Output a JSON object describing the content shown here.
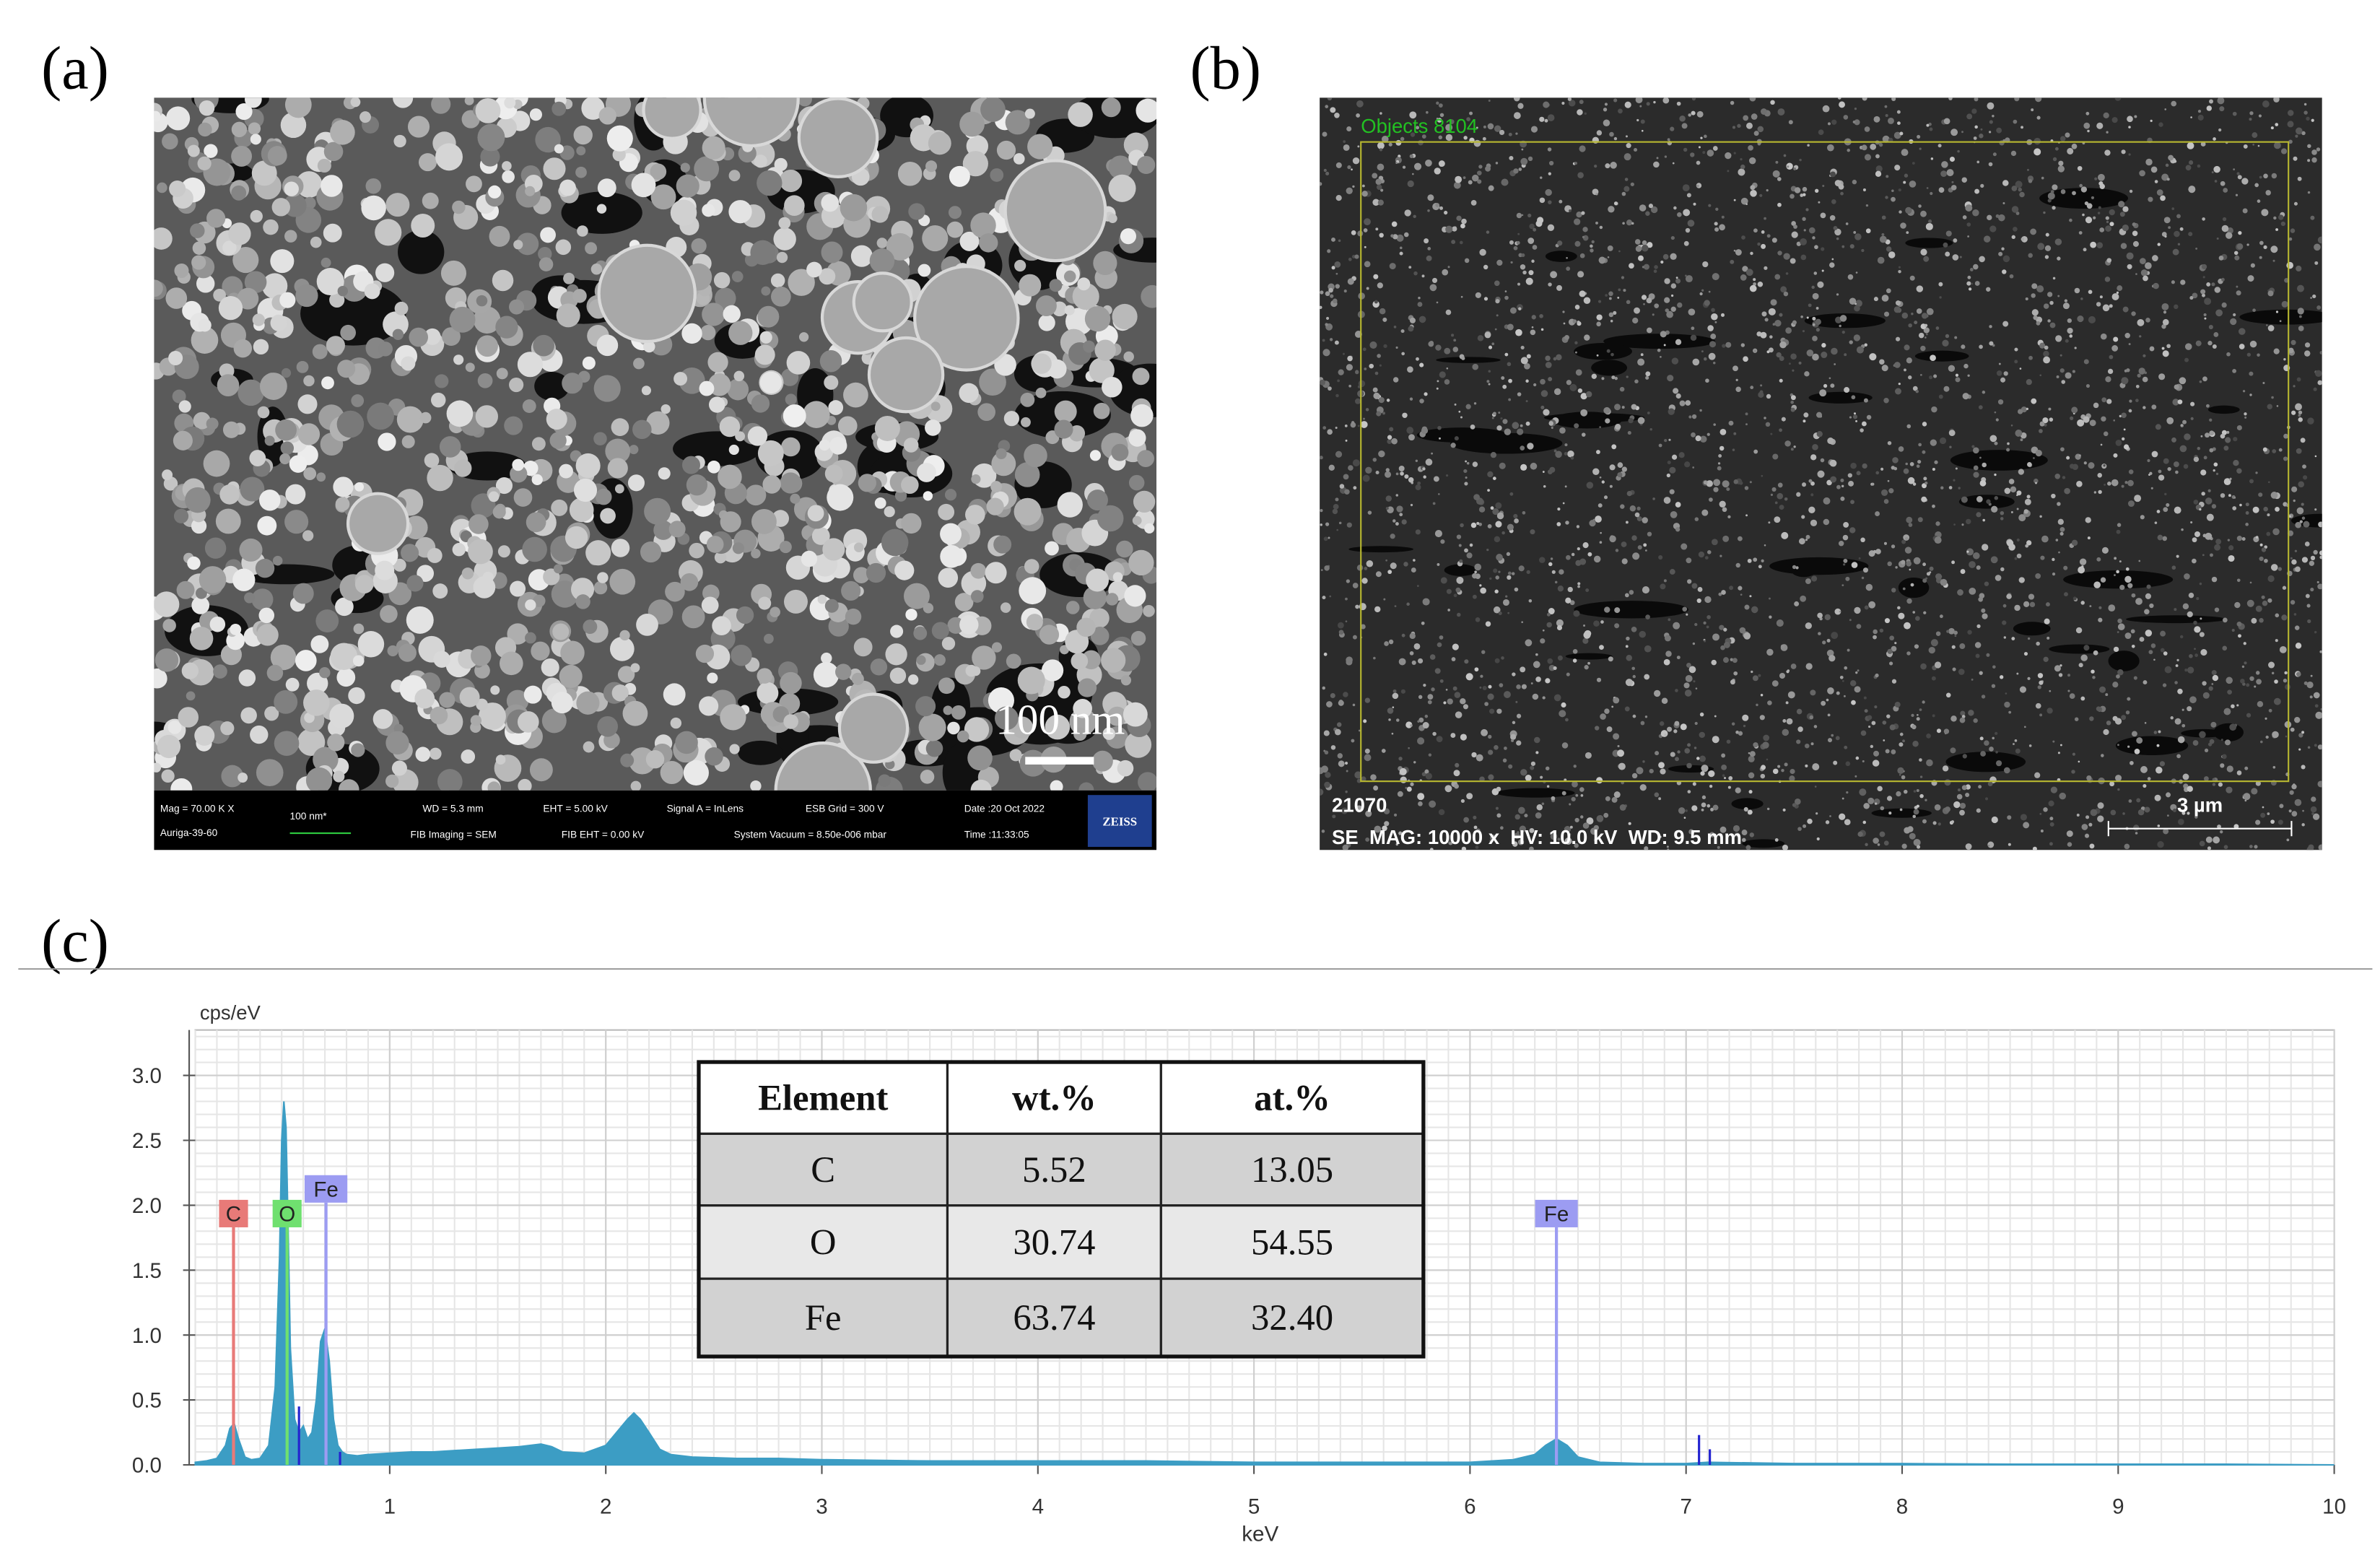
{
  "panel_labels": [
    "(a)",
    "(b)",
    "(c)"
  ],
  "sem_a": {
    "scale_bar": "100 nm",
    "info": [
      "Mag = 70.00 K X",
      "Auriga-39-60",
      "100 nm*",
      "WD = 5.3 mm",
      "EHT = 5.00 kV",
      "Signal A = InLens",
      "ESB Grid = 300 V",
      "Date :20 Oct 2022",
      "FIB Imaging = SEM",
      "FIB EHT = 0.00 kV",
      "System Vacuum = 8.50e-006 mbar",
      "Time :11:33:05"
    ],
    "logo": "ZEISS"
  },
  "sem_b": {
    "objects": "Objects 8104",
    "id": "21070",
    "scale_bar": "3 µm",
    "info": "SE  MAG: 10000 x  HV: 10.0 kV  WD: 9.5 mm"
  },
  "chart_data": {
    "type": "area",
    "ylabel": "cps/eV",
    "xlabel": "keV",
    "color": "#3c9dc4",
    "x": [
      0.1,
      0.15,
      0.2,
      0.24,
      0.26,
      0.28,
      0.3,
      0.33,
      0.36,
      0.4,
      0.44,
      0.47,
      0.49,
      0.5,
      0.51,
      0.52,
      0.53,
      0.54,
      0.56,
      0.58,
      0.6,
      0.62,
      0.64,
      0.66,
      0.68,
      0.7,
      0.72,
      0.74,
      0.76,
      0.78,
      0.8,
      0.85,
      0.9,
      1.0,
      1.1,
      1.2,
      1.3,
      1.4,
      1.5,
      1.6,
      1.7,
      1.75,
      1.8,
      1.9,
      2.0,
      2.05,
      2.1,
      2.13,
      2.16,
      2.2,
      2.25,
      2.3,
      2.4,
      2.6,
      2.8,
      3.0,
      3.5,
      4.0,
      4.5,
      5.0,
      5.5,
      6.0,
      6.2,
      6.3,
      6.35,
      6.4,
      6.45,
      6.5,
      6.6,
      6.8,
      7.0,
      7.1,
      7.5,
      8.0,
      8.5,
      9.0,
      9.5,
      10.0
    ],
    "values": [
      0.02,
      0.03,
      0.05,
      0.15,
      0.28,
      0.32,
      0.2,
      0.06,
      0.04,
      0.05,
      0.15,
      0.6,
      1.6,
      2.5,
      2.8,
      2.6,
      1.8,
      0.9,
      0.35,
      0.25,
      0.3,
      0.2,
      0.25,
      0.5,
      0.95,
      1.05,
      0.8,
      0.35,
      0.15,
      0.1,
      0.08,
      0.07,
      0.08,
      0.09,
      0.1,
      0.1,
      0.11,
      0.12,
      0.13,
      0.14,
      0.16,
      0.14,
      0.1,
      0.09,
      0.15,
      0.25,
      0.35,
      0.4,
      0.35,
      0.25,
      0.12,
      0.08,
      0.06,
      0.05,
      0.05,
      0.04,
      0.03,
      0.03,
      0.03,
      0.02,
      0.02,
      0.02,
      0.04,
      0.08,
      0.15,
      0.2,
      0.15,
      0.06,
      0.02,
      0.01,
      0.01,
      0.02,
      0.01,
      0.01,
      0.005,
      0.005,
      0.005,
      0.0
    ],
    "peaks": {
      "color": "#2424d0",
      "x": [
        0.58,
        0.705,
        0.77,
        6.4,
        7.06,
        7.11
      ],
      "values": [
        0.45,
        1.7,
        0.1,
        1.7,
        0.23,
        0.12
      ]
    },
    "markers": [
      {
        "label": "C",
        "energy": 0.277,
        "height": 1.83,
        "color": "#e87a78"
      },
      {
        "label": "O",
        "energy": 0.525,
        "height": 1.83,
        "color": "#6fe06f"
      },
      {
        "label": "Fe",
        "energy": 0.705,
        "height": 2.02,
        "color": "#9c9cf2"
      },
      {
        "label": "Fe",
        "energy": 6.4,
        "height": 1.83,
        "color": "#9c9cf2"
      }
    ],
    "xlim": [
      0.1,
      10
    ],
    "ylim": [
      0,
      3.35
    ],
    "xticks": [
      1,
      2,
      3,
      4,
      5,
      6,
      7,
      8,
      9,
      10
    ],
    "yticks": [
      {
        "value": 0,
        "label": "0.0"
      },
      0.5,
      {
        "value": 1,
        "label": "1.0"
      },
      1.5,
      {
        "value": 2,
        "label": "2.0"
      },
      2.5,
      {
        "value": 3,
        "label": "3.0"
      }
    ],
    "grid": true
  },
  "table": {
    "header": [
      "Element",
      "wt.%",
      "at.%"
    ],
    "rows": [
      [
        "C",
        "5.52",
        "13.05"
      ],
      [
        "O",
        "30.74",
        "54.55"
      ],
      [
        "Fe",
        "63.74",
        "32.40"
      ]
    ]
  }
}
